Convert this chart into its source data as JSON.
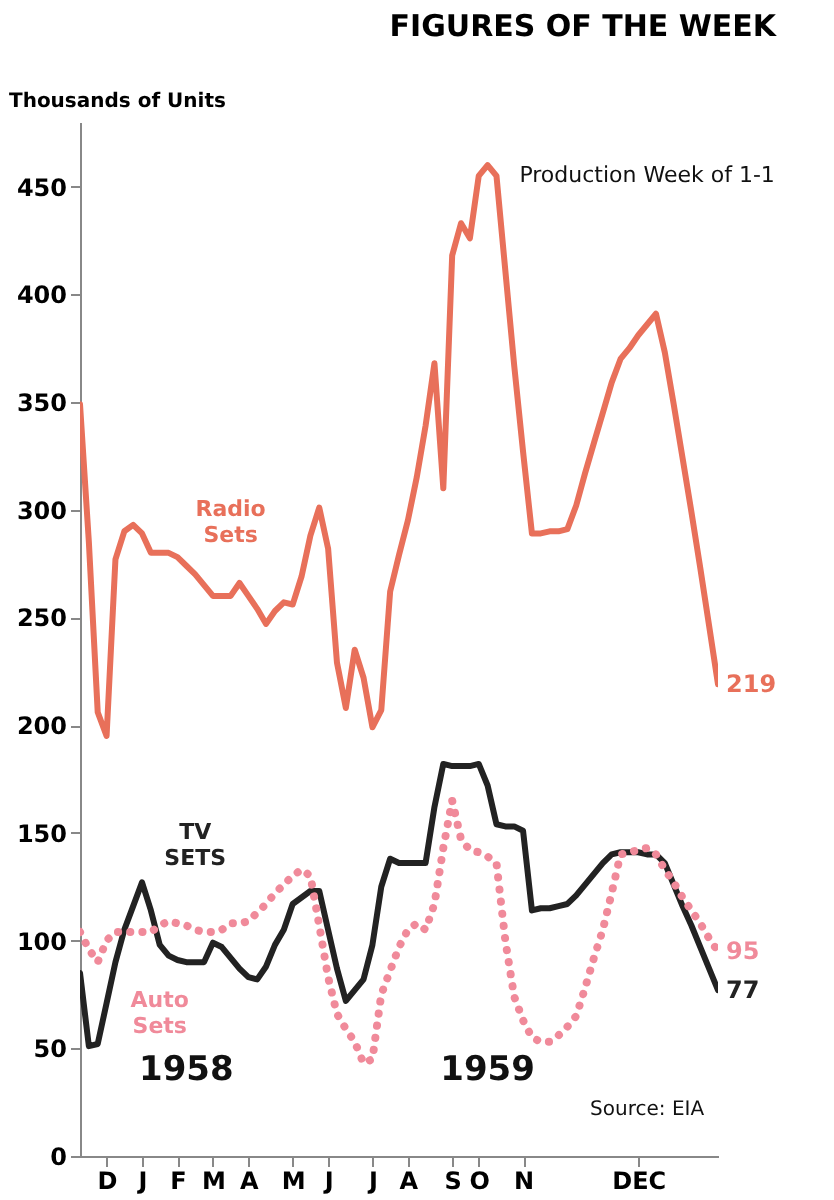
{
  "chart_data": {
    "type": "line",
    "title": "FIGURES OF THE WEEK",
    "ylabel": "Thousands of Units",
    "categories": [
      null,
      null,
      null,
      "D",
      null,
      null,
      null,
      "J",
      null,
      null,
      null,
      "F",
      null,
      null,
      null,
      "M",
      null,
      null,
      null,
      "A",
      null,
      null,
      null,
      null,
      "M",
      null,
      null,
      null,
      "J",
      null,
      null,
      null,
      null,
      "J",
      null,
      null,
      null,
      "A",
      null,
      null,
      null,
      null,
      "S",
      null,
      null,
      "O",
      null,
      null,
      null,
      null,
      "N",
      null,
      null,
      null,
      null,
      null,
      null,
      null,
      null,
      null,
      null,
      null,
      null,
      "DEC",
      null,
      null,
      null,
      null,
      null,
      null,
      null,
      null,
      null
    ],
    "ylim": [
      0,
      480
    ],
    "yticks": [
      0,
      50,
      100,
      150,
      200,
      250,
      300,
      350,
      400,
      450
    ],
    "grid": false,
    "legend": false,
    "annotations": [
      "Production Week of 1-1",
      "1958",
      "1959",
      "Source: EIA"
    ],
    "series": [
      {
        "name": "Radio Sets",
        "color": "#e8705a",
        "line_style": "solid",
        "values": [
          349,
          285,
          206,
          195,
          277,
          290,
          293,
          289,
          280,
          280,
          280,
          278,
          274,
          270,
          265,
          260,
          260,
          260,
          266,
          260,
          254,
          247,
          253,
          257,
          256,
          269,
          288,
          301,
          282,
          229,
          208,
          235,
          222,
          199,
          207,
          262,
          279,
          295,
          315,
          339,
          368,
          310,
          418,
          433,
          426,
          455,
          460,
          455,
          411,
          367,
          327,
          289,
          289,
          290,
          290,
          291,
          302,
          317,
          331,
          345,
          359,
          370,
          375,
          381,
          386,
          391,
          373,
          349,
          324,
          299,
          273,
          246,
          219
        ],
        "value_labels": [
          null,
          null,
          null,
          null,
          null,
          null,
          null,
          null,
          null,
          null,
          null,
          null,
          null,
          null,
          null,
          null,
          null,
          null,
          null,
          null,
          null,
          null,
          null,
          null,
          null,
          null,
          null,
          null,
          null,
          null,
          null,
          null,
          null,
          null,
          null,
          null,
          null,
          null,
          null,
          null,
          null,
          null,
          null,
          null,
          null,
          null,
          null,
          null,
          null,
          null,
          null,
          null,
          null,
          null,
          null,
          null,
          null,
          null,
          null,
          null,
          null,
          null,
          null,
          null,
          null,
          null,
          null,
          null,
          null,
          null,
          null,
          null,
          "219"
        ]
      },
      {
        "name": "TV SETS",
        "color": "#222222",
        "line_style": "solid",
        "values": [
          85,
          51,
          52,
          71,
          90,
          105,
          116,
          127,
          114,
          98,
          93,
          91,
          90,
          90,
          90,
          99,
          97,
          92,
          87,
          83,
          82,
          88,
          98,
          105,
          117,
          120,
          123,
          123,
          105,
          87,
          72,
          77,
          82,
          98,
          125,
          138,
          136,
          136,
          136,
          136,
          162,
          182,
          181,
          181,
          181,
          182,
          172,
          154,
          153,
          153,
          151,
          114,
          115,
          115,
          116,
          117,
          121,
          126,
          131,
          136,
          140,
          141,
          141,
          141,
          140,
          140,
          136,
          126,
          116,
          107,
          97,
          87,
          77
        ],
        "value_labels": [
          null,
          null,
          null,
          null,
          null,
          null,
          null,
          null,
          null,
          null,
          null,
          null,
          null,
          null,
          null,
          null,
          null,
          null,
          null,
          null,
          null,
          null,
          null,
          null,
          null,
          null,
          null,
          null,
          null,
          null,
          null,
          null,
          null,
          null,
          null,
          null,
          null,
          null,
          null,
          null,
          null,
          null,
          null,
          null,
          null,
          null,
          null,
          null,
          null,
          null,
          null,
          null,
          null,
          null,
          null,
          null,
          null,
          null,
          null,
          null,
          null,
          null,
          null,
          null,
          null,
          null,
          null,
          null,
          null,
          null,
          null,
          null,
          "77"
        ]
      },
      {
        "name": "Auto Sets",
        "color": "#f08a9a",
        "line_style": "dotted",
        "values": [
          104,
          96,
          90,
          100,
          104,
          104,
          104,
          104,
          104,
          107,
          109,
          108,
          107,
          105,
          104,
          104,
          105,
          108,
          108,
          109,
          113,
          117,
          122,
          126,
          130,
          133,
          130,
          107,
          83,
          66,
          59,
          53,
          43,
          45,
          75,
          86,
          97,
          105,
          108,
          105,
          117,
          143,
          165,
          147,
          142,
          141,
          139,
          136,
          100,
          74,
          63,
          55,
          53,
          53,
          56,
          60,
          65,
          78,
          92,
          105,
          122,
          140,
          141,
          142,
          143,
          140,
          133,
          127,
          120,
          114,
          108,
          101,
          95
        ],
        "value_labels": [
          null,
          null,
          null,
          null,
          null,
          null,
          null,
          null,
          null,
          null,
          null,
          null,
          null,
          null,
          null,
          null,
          null,
          null,
          null,
          null,
          null,
          null,
          null,
          null,
          null,
          null,
          null,
          null,
          null,
          null,
          null,
          null,
          null,
          null,
          null,
          null,
          null,
          null,
          null,
          null,
          null,
          null,
          null,
          null,
          null,
          null,
          null,
          null,
          null,
          null,
          null,
          null,
          null,
          null,
          null,
          null,
          null,
          null,
          null,
          null,
          null,
          null,
          null,
          null,
          null,
          null,
          null,
          null,
          null,
          null,
          null,
          null,
          "95"
        ]
      }
    ]
  }
}
